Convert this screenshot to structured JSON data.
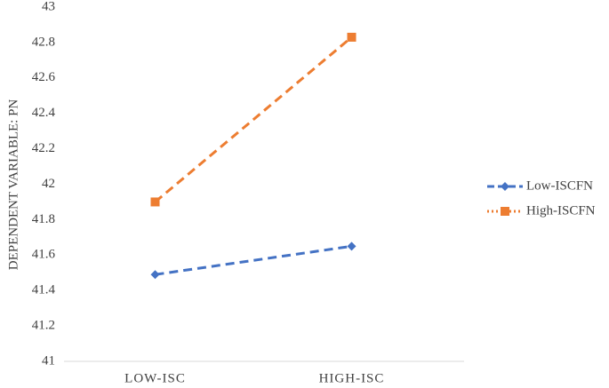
{
  "chart_data": {
    "type": "line",
    "y_label": "DEPENDENT VARIABLE:  PN",
    "categories": [
      "LOW-ISC",
      "HIGH-ISC"
    ],
    "series": [
      {
        "name": "Low-ISCFN",
        "color": "#4472c4",
        "marker": "diamond",
        "values": [
          41.49,
          41.65
        ]
      },
      {
        "name": "High-ISCFN",
        "color": "#ed7d31",
        "marker": "square",
        "values": [
          41.9,
          42.83
        ]
      }
    ],
    "ylim": [
      41,
      43
    ],
    "yticks": [
      41,
      41.2,
      41.4,
      41.6,
      41.8,
      42,
      42.2,
      42.4,
      42.6,
      42.8,
      43
    ],
    "grid": false,
    "legend": "right"
  }
}
